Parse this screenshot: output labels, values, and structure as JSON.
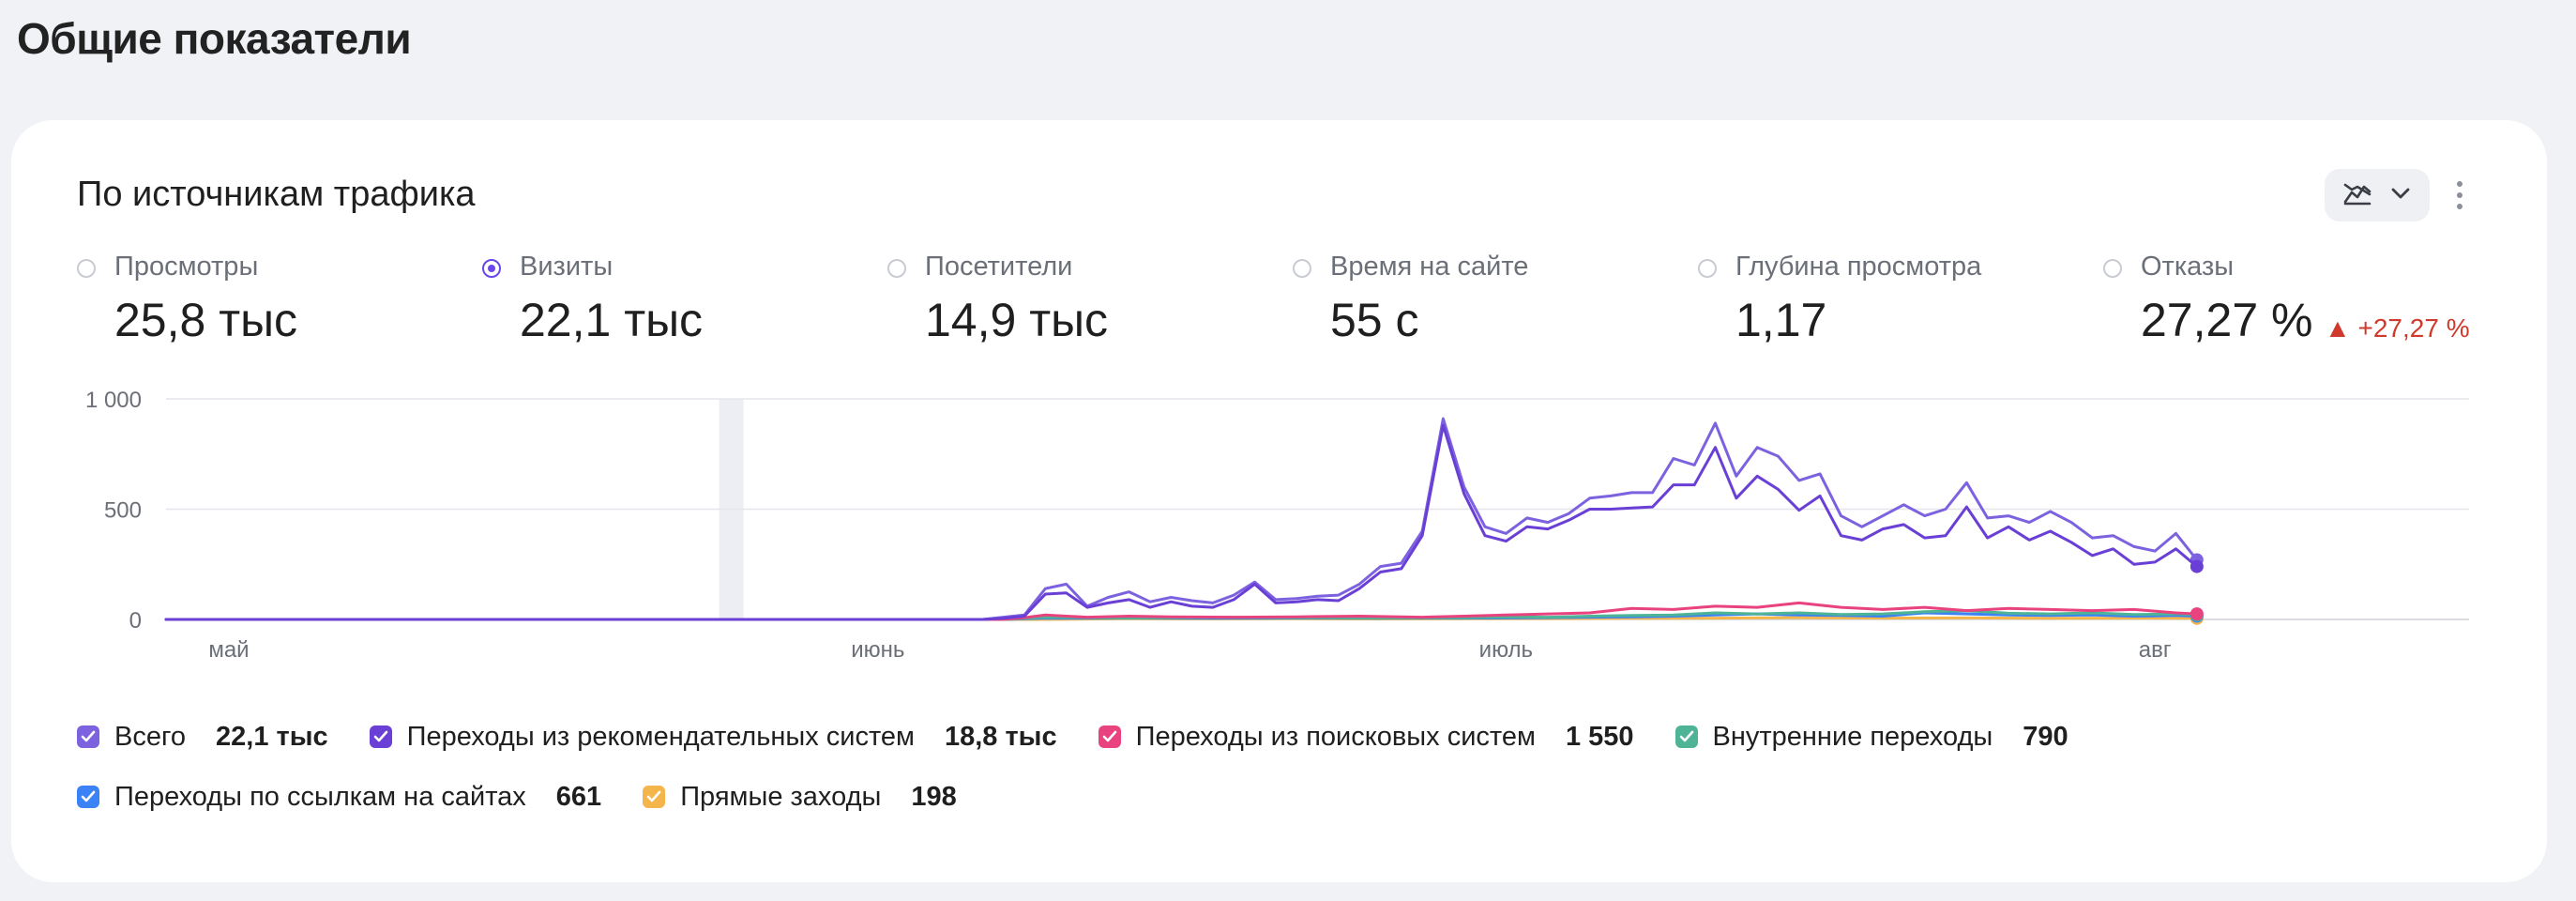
{
  "page": {
    "title": "Общие показатели"
  },
  "card": {
    "title": "По источникам трафика",
    "chart_type_button": {
      "icon": "area-chart-icon",
      "dropdown_icon": "chevron-down-icon"
    },
    "more_button": {
      "icon": "more-vertical-icon"
    }
  },
  "metrics": [
    {
      "label": "Просмотры",
      "value": "25,8 тыс",
      "selected": false
    },
    {
      "label": "Визиты",
      "value": "22,1 тыс",
      "selected": true
    },
    {
      "label": "Посетители",
      "value": "14,9 тыс",
      "selected": false
    },
    {
      "label": "Время на сайте",
      "value": "55 с",
      "selected": false
    },
    {
      "label": "Глубина просмотра",
      "value": "1,17",
      "selected": false
    },
    {
      "label": "Отказы",
      "value": "27,27 %",
      "selected": false,
      "delta": "▲ +27,27 %",
      "delta_color": "#d03a2c"
    }
  ],
  "legend": [
    {
      "name": "Всего",
      "total": "22,1 тыс",
      "color": "#7d62e0",
      "checked": true
    },
    {
      "name": "Переходы из рекомендательных систем",
      "total": "18,8 тыс",
      "color": "#6a3fd6",
      "checked": true
    },
    {
      "name": "Переходы из поисковых систем",
      "total": "1 550",
      "color": "#e8437e",
      "checked": true
    },
    {
      "name": "Внутренние переходы",
      "total": "790",
      "color": "#4fb395",
      "checked": true
    },
    {
      "name": "Переходы по ссылкам на сайтах",
      "total": "661",
      "color": "#3b82f6",
      "checked": true
    },
    {
      "name": "Прямые заходы",
      "total": "198",
      "color": "#f4b64b",
      "checked": true
    }
  ],
  "chart_data": {
    "type": "line",
    "y_ticks": [
      "1 000",
      "500",
      "0"
    ],
    "ylim": [
      0,
      1000
    ],
    "x_labels": [
      {
        "label": "май",
        "day": 7
      },
      {
        "label": "июнь",
        "day": 38
      },
      {
        "label": "июль",
        "day": 68
      },
      {
        "label": "авг",
        "day": 99
      }
    ],
    "highlight_day": 31,
    "x_start_day": 4,
    "x_end_day": 114,
    "series": [
      {
        "name": "Всего",
        "color": "#7d62e0",
        "points": [
          [
            4,
            0
          ],
          [
            40,
            0
          ],
          [
            43,
            0
          ],
          [
            44,
            10
          ],
          [
            45,
            20
          ],
          [
            46,
            140
          ],
          [
            47,
            160
          ],
          [
            48,
            60
          ],
          [
            49,
            100
          ],
          [
            50,
            125
          ],
          [
            51,
            80
          ],
          [
            52,
            100
          ],
          [
            53,
            85
          ],
          [
            54,
            75
          ],
          [
            55,
            110
          ],
          [
            56,
            170
          ],
          [
            57,
            90
          ],
          [
            58,
            95
          ],
          [
            59,
            105
          ],
          [
            60,
            110
          ],
          [
            61,
            160
          ],
          [
            62,
            240
          ],
          [
            63,
            255
          ],
          [
            64,
            400
          ],
          [
            65,
            910
          ],
          [
            66,
            600
          ],
          [
            67,
            420
          ],
          [
            68,
            390
          ],
          [
            69,
            460
          ],
          [
            70,
            440
          ],
          [
            71,
            480
          ],
          [
            72,
            550
          ],
          [
            73,
            560
          ],
          [
            74,
            575
          ],
          [
            75,
            575
          ],
          [
            76,
            730
          ],
          [
            77,
            700
          ],
          [
            78,
            890
          ],
          [
            79,
            650
          ],
          [
            80,
            780
          ],
          [
            81,
            740
          ],
          [
            82,
            630
          ],
          [
            83,
            660
          ],
          [
            84,
            470
          ],
          [
            85,
            420
          ],
          [
            86,
            470
          ],
          [
            87,
            520
          ],
          [
            88,
            470
          ],
          [
            89,
            500
          ],
          [
            90,
            620
          ],
          [
            91,
            460
          ],
          [
            92,
            470
          ],
          [
            93,
            440
          ],
          [
            94,
            490
          ],
          [
            95,
            440
          ],
          [
            96,
            370
          ],
          [
            97,
            380
          ],
          [
            98,
            330
          ],
          [
            99,
            310
          ],
          [
            100,
            390
          ],
          [
            101,
            270
          ]
        ]
      },
      {
        "name": "Переходы из рекомендательных систем",
        "color": "#6a3fd6",
        "points": [
          [
            4,
            0
          ],
          [
            40,
            0
          ],
          [
            43,
            0
          ],
          [
            44,
            5
          ],
          [
            45,
            15
          ],
          [
            46,
            115
          ],
          [
            47,
            120
          ],
          [
            48,
            55
          ],
          [
            49,
            75
          ],
          [
            50,
            90
          ],
          [
            51,
            55
          ],
          [
            52,
            80
          ],
          [
            53,
            60
          ],
          [
            54,
            55
          ],
          [
            55,
            90
          ],
          [
            56,
            160
          ],
          [
            57,
            75
          ],
          [
            58,
            80
          ],
          [
            59,
            90
          ],
          [
            60,
            85
          ],
          [
            61,
            140
          ],
          [
            62,
            215
          ],
          [
            63,
            230
          ],
          [
            64,
            380
          ],
          [
            65,
            880
          ],
          [
            66,
            570
          ],
          [
            67,
            380
          ],
          [
            68,
            355
          ],
          [
            69,
            420
          ],
          [
            70,
            410
          ],
          [
            71,
            450
          ],
          [
            72,
            500
          ],
          [
            73,
            500
          ],
          [
            74,
            505
          ],
          [
            75,
            510
          ],
          [
            76,
            610
          ],
          [
            77,
            610
          ],
          [
            78,
            780
          ],
          [
            79,
            550
          ],
          [
            80,
            650
          ],
          [
            81,
            590
          ],
          [
            82,
            495
          ],
          [
            83,
            560
          ],
          [
            84,
            380
          ],
          [
            85,
            360
          ],
          [
            86,
            410
          ],
          [
            87,
            430
          ],
          [
            88,
            370
          ],
          [
            89,
            380
          ],
          [
            90,
            510
          ],
          [
            91,
            370
          ],
          [
            92,
            420
          ],
          [
            93,
            360
          ],
          [
            94,
            400
          ],
          [
            95,
            350
          ],
          [
            96,
            290
          ],
          [
            97,
            320
          ],
          [
            98,
            250
          ],
          [
            99,
            260
          ],
          [
            100,
            320
          ],
          [
            101,
            240
          ]
        ]
      },
      {
        "name": "Переходы из поисковых систем",
        "color": "#e8437e",
        "points": [
          [
            4,
            0
          ],
          [
            44,
            0
          ],
          [
            45,
            8
          ],
          [
            46,
            20
          ],
          [
            47,
            15
          ],
          [
            48,
            10
          ],
          [
            50,
            15
          ],
          [
            52,
            12
          ],
          [
            55,
            10
          ],
          [
            58,
            12
          ],
          [
            61,
            15
          ],
          [
            64,
            10
          ],
          [
            66,
            15
          ],
          [
            68,
            20
          ],
          [
            70,
            25
          ],
          [
            72,
            30
          ],
          [
            74,
            50
          ],
          [
            76,
            45
          ],
          [
            78,
            60
          ],
          [
            80,
            55
          ],
          [
            82,
            75
          ],
          [
            84,
            55
          ],
          [
            86,
            45
          ],
          [
            88,
            55
          ],
          [
            90,
            40
          ],
          [
            92,
            50
          ],
          [
            94,
            45
          ],
          [
            96,
            40
          ],
          [
            98,
            45
          ],
          [
            100,
            30
          ],
          [
            101,
            25
          ]
        ]
      },
      {
        "name": "Внутренние переходы",
        "color": "#4fb395",
        "points": [
          [
            4,
            0
          ],
          [
            44,
            0
          ],
          [
            46,
            10
          ],
          [
            48,
            8
          ],
          [
            50,
            6
          ],
          [
            54,
            10
          ],
          [
            58,
            8
          ],
          [
            62,
            6
          ],
          [
            66,
            8
          ],
          [
            68,
            12
          ],
          [
            70,
            10
          ],
          [
            72,
            15
          ],
          [
            74,
            18
          ],
          [
            76,
            20
          ],
          [
            78,
            30
          ],
          [
            80,
            25
          ],
          [
            82,
            30
          ],
          [
            84,
            22
          ],
          [
            86,
            25
          ],
          [
            88,
            35
          ],
          [
            90,
            40
          ],
          [
            92,
            28
          ],
          [
            94,
            25
          ],
          [
            96,
            30
          ],
          [
            98,
            22
          ],
          [
            100,
            25
          ],
          [
            101,
            20
          ]
        ]
      },
      {
        "name": "Переходы по ссылкам на сайтах",
        "color": "#3b82f6",
        "points": [
          [
            4,
            0
          ],
          [
            44,
            0
          ],
          [
            46,
            6
          ],
          [
            48,
            5
          ],
          [
            50,
            6
          ],
          [
            54,
            5
          ],
          [
            58,
            6
          ],
          [
            62,
            5
          ],
          [
            66,
            6
          ],
          [
            70,
            8
          ],
          [
            72,
            10
          ],
          [
            74,
            12
          ],
          [
            76,
            15
          ],
          [
            78,
            20
          ],
          [
            80,
            25
          ],
          [
            82,
            20
          ],
          [
            84,
            18
          ],
          [
            86,
            15
          ],
          [
            88,
            30
          ],
          [
            90,
            25
          ],
          [
            92,
            20
          ],
          [
            94,
            18
          ],
          [
            96,
            20
          ],
          [
            98,
            15
          ],
          [
            100,
            18
          ],
          [
            101,
            15
          ]
        ]
      },
      {
        "name": "Прямые заходы",
        "color": "#f4b64b",
        "points": [
          [
            4,
            0
          ],
          [
            46,
            0
          ],
          [
            50,
            3
          ],
          [
            54,
            2
          ],
          [
            58,
            3
          ],
          [
            62,
            2
          ],
          [
            66,
            3
          ],
          [
            70,
            4
          ],
          [
            74,
            5
          ],
          [
            78,
            6
          ],
          [
            82,
            8
          ],
          [
            86,
            6
          ],
          [
            90,
            7
          ],
          [
            94,
            5
          ],
          [
            98,
            6
          ],
          [
            101,
            5
          ]
        ]
      }
    ]
  }
}
